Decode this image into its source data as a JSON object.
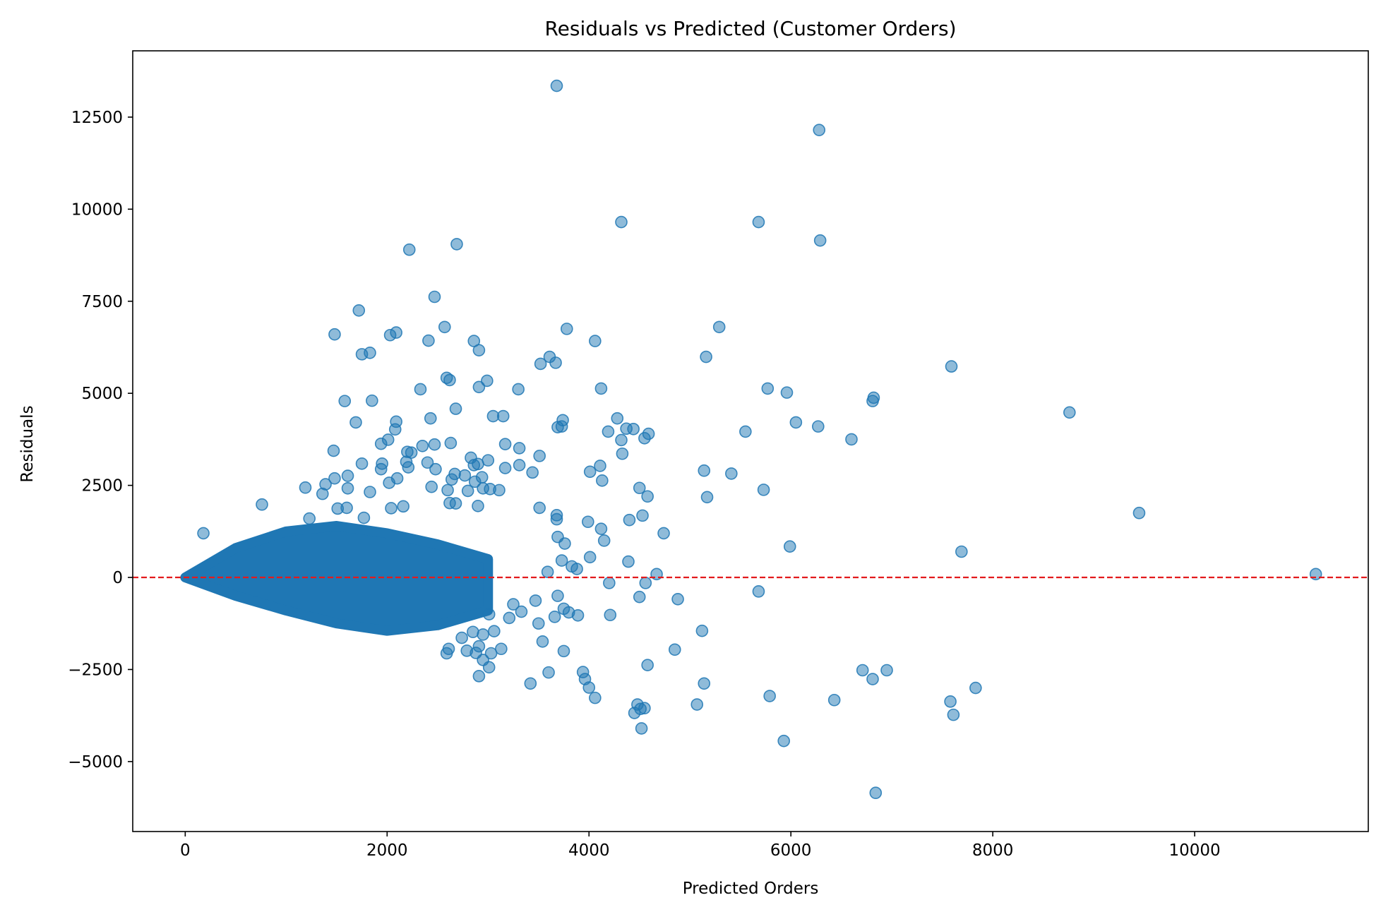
{
  "chart_data": {
    "type": "scatter",
    "title": "Residuals vs Predicted (Customer Orders)",
    "xlabel": "Predicted Orders",
    "ylabel": "Residuals",
    "xlim": [
      -520,
      11720
    ],
    "ylim": [
      -6900,
      14300
    ],
    "xticks": [
      0,
      2000,
      4000,
      6000,
      8000,
      10000
    ],
    "xtick_labels": [
      "0",
      "2000",
      "4000",
      "6000",
      "8000",
      "10000"
    ],
    "yticks": [
      -5000,
      -2500,
      0,
      2500,
      5000,
      7500,
      10000,
      12500
    ],
    "ytick_labels": [
      "−5000",
      "−2500",
      "0",
      "2500",
      "5000",
      "7500",
      "10000",
      "12500"
    ],
    "reference_line": {
      "y": 0,
      "style": "dashed",
      "color": "#ff0000"
    },
    "grid": false,
    "legend": "none",
    "colors": {
      "marker": "#1f77b4",
      "marker_alpha": 0.5,
      "reference": "#e31a1c"
    },
    "dense_cluster": {
      "description_points": "bulk of points forming a wedge near origin",
      "x_range": [
        0,
        3000
      ],
      "upper_envelope": [
        [
          0,
          0
        ],
        [
          500,
          800
        ],
        [
          1000,
          1250
        ],
        [
          1500,
          1400
        ],
        [
          2000,
          1200
        ],
        [
          2500,
          900
        ],
        [
          3000,
          500
        ]
      ],
      "lower_envelope": [
        [
          0,
          0
        ],
        [
          500,
          -500
        ],
        [
          1000,
          -900
        ],
        [
          1500,
          -1250
        ],
        [
          2000,
          -1450
        ],
        [
          2500,
          -1300
        ],
        [
          3000,
          -900
        ]
      ]
    },
    "series": [
      {
        "points": [
          [
            3680,
            13350
          ],
          [
            6280,
            12150
          ],
          [
            4320,
            9650
          ],
          [
            5680,
            9650
          ],
          [
            6290,
            9150
          ],
          [
            2690,
            9050
          ],
          [
            2220,
            8900
          ],
          [
            2470,
            7620
          ],
          [
            1720,
            7250
          ],
          [
            3780,
            6750
          ],
          [
            2570,
            6800
          ],
          [
            5290,
            6800
          ],
          [
            2090,
            6650
          ],
          [
            2030,
            6580
          ],
          [
            1480,
            6600
          ],
          [
            2410,
            6430
          ],
          [
            2860,
            6420
          ],
          [
            4060,
            6420
          ],
          [
            2910,
            6170
          ],
          [
            1830,
            6100
          ],
          [
            1750,
            6060
          ],
          [
            3610,
            5990
          ],
          [
            5160,
            5990
          ],
          [
            3520,
            5800
          ],
          [
            3670,
            5830
          ],
          [
            7590,
            5730
          ],
          [
            2590,
            5420
          ],
          [
            2620,
            5360
          ],
          [
            2990,
            5340
          ],
          [
            2910,
            5170
          ],
          [
            4120,
            5130
          ],
          [
            5770,
            5130
          ],
          [
            3300,
            5110
          ],
          [
            2330,
            5110
          ],
          [
            5960,
            5020
          ],
          [
            6820,
            4880
          ],
          [
            6810,
            4790
          ],
          [
            1580,
            4790
          ],
          [
            1850,
            4800
          ],
          [
            2680,
            4580
          ],
          [
            8760,
            4480
          ],
          [
            3050,
            4380
          ],
          [
            3150,
            4380
          ],
          [
            2430,
            4320
          ],
          [
            4280,
            4320
          ],
          [
            3740,
            4270
          ],
          [
            2090,
            4230
          ],
          [
            1690,
            4210
          ],
          [
            6050,
            4210
          ],
          [
            3690,
            4080
          ],
          [
            3730,
            4100
          ],
          [
            6270,
            4100
          ],
          [
            4370,
            4040
          ],
          [
            4440,
            4030
          ],
          [
            2080,
            4020
          ],
          [
            4190,
            3960
          ],
          [
            5550,
            3960
          ],
          [
            4590,
            3900
          ],
          [
            4320,
            3730
          ],
          [
            4550,
            3780
          ],
          [
            6600,
            3750
          ],
          [
            2010,
            3740
          ],
          [
            1940,
            3630
          ],
          [
            2470,
            3610
          ],
          [
            2630,
            3650
          ],
          [
            3170,
            3620
          ],
          [
            2350,
            3570
          ],
          [
            4330,
            3360
          ],
          [
            3310,
            3510
          ],
          [
            3510,
            3300
          ],
          [
            2200,
            3410
          ],
          [
            2240,
            3390
          ],
          [
            1470,
            3440
          ],
          [
            2830,
            3250
          ],
          [
            3000,
            3180
          ],
          [
            1750,
            3090
          ],
          [
            1950,
            3090
          ],
          [
            2190,
            3140
          ],
          [
            2400,
            3120
          ],
          [
            2900,
            3080
          ],
          [
            4110,
            3030
          ],
          [
            2860,
            3050
          ],
          [
            3310,
            3050
          ],
          [
            3170,
            2970
          ],
          [
            1940,
            2940
          ],
          [
            2210,
            2990
          ],
          [
            2480,
            2940
          ],
          [
            4010,
            2870
          ],
          [
            5140,
            2900
          ],
          [
            3440,
            2850
          ],
          [
            5410,
            2820
          ],
          [
            2670,
            2810
          ],
          [
            1610,
            2760
          ],
          [
            2770,
            2770
          ],
          [
            1480,
            2690
          ],
          [
            2940,
            2720
          ],
          [
            2640,
            2660
          ],
          [
            1390,
            2530
          ],
          [
            2100,
            2690
          ],
          [
            4130,
            2630
          ],
          [
            2870,
            2600
          ],
          [
            2020,
            2570
          ],
          [
            1610,
            2420
          ],
          [
            2440,
            2460
          ],
          [
            3020,
            2400
          ],
          [
            4500,
            2430
          ],
          [
            3110,
            2370
          ],
          [
            2600,
            2370
          ],
          [
            5730,
            2380
          ],
          [
            2800,
            2350
          ],
          [
            1830,
            2320
          ],
          [
            2950,
            2420
          ],
          [
            1360,
            2270
          ],
          [
            1190,
            2440
          ],
          [
            4580,
            2200
          ],
          [
            5170,
            2180
          ],
          [
            2620,
            2020
          ],
          [
            2680,
            2010
          ],
          [
            1600,
            1890
          ],
          [
            1510,
            1870
          ],
          [
            2040,
            1880
          ],
          [
            3510,
            1890
          ],
          [
            2160,
            1930
          ],
          [
            2900,
            1940
          ],
          [
            3680,
            1690
          ],
          [
            4530,
            1680
          ],
          [
            9450,
            1750
          ],
          [
            3990,
            1510
          ],
          [
            3680,
            1580
          ],
          [
            4400,
            1560
          ],
          [
            4120,
            1320
          ],
          [
            760,
            1980
          ],
          [
            1230,
            1600
          ],
          [
            1770,
            1620
          ],
          [
            5990,
            840
          ],
          [
            7690,
            700
          ],
          [
            4740,
            1200
          ],
          [
            3690,
            1100
          ],
          [
            4150,
            1000
          ],
          [
            3760,
            920
          ],
          [
            4010,
            550
          ],
          [
            4390,
            430
          ],
          [
            3730,
            460
          ],
          [
            3830,
            300
          ],
          [
            3880,
            230
          ],
          [
            3590,
            150
          ],
          [
            180,
            1200
          ],
          [
            4670,
            90
          ],
          [
            11200,
            90
          ],
          [
            4200,
            -150
          ],
          [
            5680,
            -380
          ],
          [
            4500,
            -530
          ],
          [
            4880,
            -590
          ],
          [
            4560,
            -150
          ],
          [
            3690,
            -500
          ],
          [
            3470,
            -630
          ],
          [
            4210,
            -1020
          ],
          [
            3750,
            -850
          ],
          [
            3890,
            -1030
          ],
          [
            3800,
            -950
          ],
          [
            3660,
            -1070
          ],
          [
            3500,
            -1250
          ],
          [
            3540,
            -1740
          ],
          [
            3750,
            -2000
          ],
          [
            3600,
            -2580
          ],
          [
            3420,
            -2880
          ],
          [
            4850,
            -1960
          ],
          [
            5120,
            -1450
          ],
          [
            4580,
            -2380
          ],
          [
            3940,
            -2570
          ],
          [
            3960,
            -2760
          ],
          [
            4000,
            -2990
          ],
          [
            4060,
            -3270
          ],
          [
            4450,
            -3680
          ],
          [
            4480,
            -3450
          ],
          [
            4550,
            -3550
          ],
          [
            4510,
            -3570
          ],
          [
            4520,
            -4100
          ],
          [
            5070,
            -3450
          ],
          [
            5140,
            -2880
          ],
          [
            5790,
            -3220
          ],
          [
            5930,
            -4440
          ],
          [
            6430,
            -3330
          ],
          [
            6710,
            -2520
          ],
          [
            6810,
            -2760
          ],
          [
            6950,
            -2520
          ],
          [
            6840,
            -5850
          ],
          [
            7580,
            -3370
          ],
          [
            7610,
            -3730
          ],
          [
            7830,
            -3000
          ],
          [
            3030,
            -2060
          ],
          [
            2880,
            -2050
          ],
          [
            2950,
            -2240
          ],
          [
            3010,
            -2440
          ],
          [
            2910,
            -2680
          ],
          [
            2910,
            -1870
          ],
          [
            3130,
            -1940
          ],
          [
            2610,
            -1940
          ],
          [
            2590,
            -2060
          ],
          [
            2740,
            -1640
          ],
          [
            2850,
            -1480
          ],
          [
            2790,
            -1990
          ],
          [
            2950,
            -1550
          ],
          [
            3060,
            -1460
          ],
          [
            3010,
            -1000
          ],
          [
            3210,
            -1100
          ],
          [
            3330,
            -930
          ],
          [
            3250,
            -730
          ]
        ]
      }
    ]
  }
}
